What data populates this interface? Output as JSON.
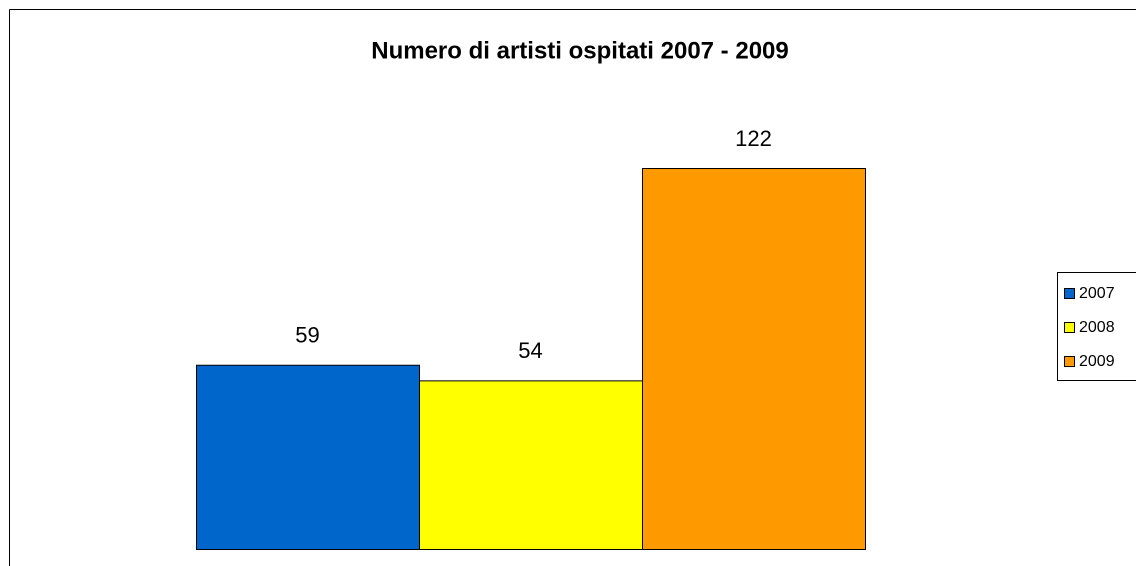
{
  "chart_data": {
    "type": "bar",
    "title": "Numero di artisti ospitati 2007 - 2009",
    "series": [
      {
        "name": "2007",
        "color": "#0066cc",
        "values": [
          59
        ]
      },
      {
        "name": "2008",
        "color": "#ffff00",
        "values": [
          54
        ]
      },
      {
        "name": "2009",
        "color": "#ff9900",
        "values": [
          122
        ]
      }
    ],
    "legend": "right"
  }
}
